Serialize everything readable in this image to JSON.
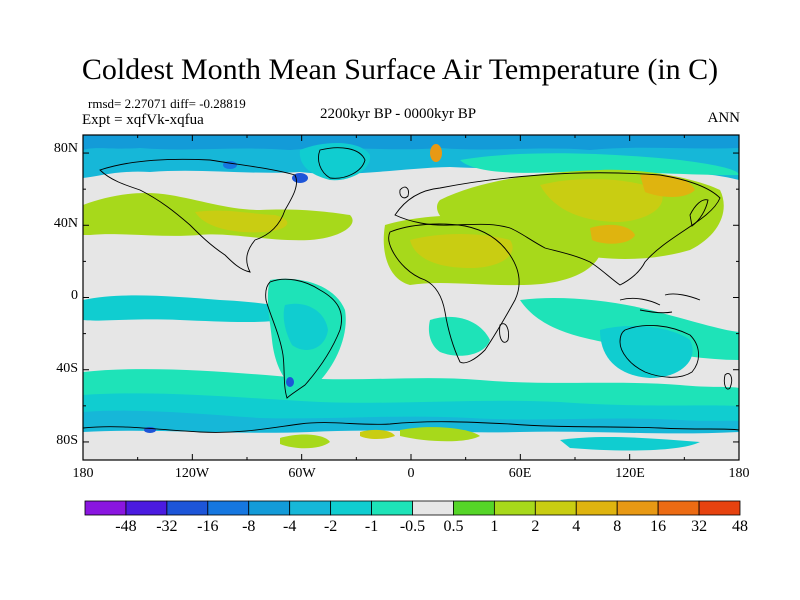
{
  "figure": {
    "title": "Coldest Month Mean Surface Air Temperature (in C)",
    "stats": "rmsd= 2.27071 diff= -0.28819",
    "experiment": "Expt = xqfVk-xqfua",
    "period": "2200kyr BP - 0000kyr BP",
    "season": "ANN"
  },
  "map": {
    "projection": "cylindrical-equidistant",
    "lon_range": [
      -180,
      180
    ],
    "lat_range": [
      -90,
      90
    ],
    "lat_labels": [
      "80N",
      "40N",
      "0",
      "40S",
      "80S"
    ],
    "lon_labels": [
      "180",
      "120W",
      "60W",
      "0",
      "60E",
      "120E",
      "180"
    ],
    "background_color": "#e6e6e6",
    "coastline_color": "#000000"
  },
  "colorbar": {
    "labels": [
      "-48",
      "-32",
      "-16",
      "-8",
      "-4",
      "-2",
      "-1",
      "-0.5",
      "0.5",
      "1",
      "2",
      "4",
      "8",
      "16",
      "32",
      "48"
    ],
    "colors": [
      "#8a16e0",
      "#4b1be0",
      "#1d55d8",
      "#1677e0",
      "#139bd8",
      "#16b7d8",
      "#10cdd0",
      "#1ee3b8",
      "#e6e6e6",
      "#55d528",
      "#a7d91b",
      "#c9cd12",
      "#dfb40f",
      "#e89914",
      "#ec6b13",
      "#e6420f"
    ]
  }
}
